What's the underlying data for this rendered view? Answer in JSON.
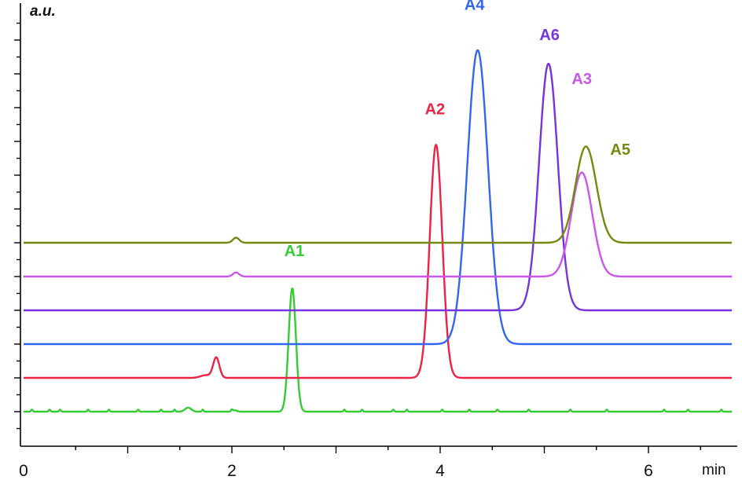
{
  "chart_data": {
    "type": "line",
    "xlabel": "min",
    "ylabel": "a.u.",
    "xlim": [
      0,
      6.8
    ],
    "x_ticks": [
      0,
      2,
      4,
      6
    ],
    "grid": false,
    "legend": "none",
    "series": [
      {
        "name": "A1",
        "color": "#33cc33",
        "baseline": 0.0,
        "label_pos": [
          2.6,
          4.6
        ],
        "peaks": [
          {
            "x": 2.58,
            "h": 3.65,
            "w": 0.035
          },
          {
            "x": 1.58,
            "h": 0.12,
            "w": 0.03
          },
          {
            "x": 2.03,
            "h": 0.04,
            "w": 0.02
          }
        ],
        "noise_x": [
          0.08,
          0.25,
          0.35,
          0.62,
          0.82,
          1.1,
          1.32,
          1.45,
          1.72,
          2.0,
          3.08,
          3.25,
          3.55,
          3.68,
          4.02,
          4.28,
          4.55,
          4.85,
          5.25,
          5.6,
          6.15,
          6.38,
          6.7
        ]
      },
      {
        "name": "A2",
        "color": "#ee2244",
        "baseline": 1.0,
        "label_pos": [
          3.95,
          8.8
        ],
        "peaks": [
          {
            "x": 3.96,
            "h": 6.9,
            "w": 0.06
          },
          {
            "x": 1.85,
            "h": 0.6,
            "w": 0.03
          },
          {
            "x": 1.75,
            "h": 0.08,
            "w": 0.05
          }
        ]
      },
      {
        "name": "A4",
        "color": "#3366ee",
        "baseline": 2.0,
        "label_pos": [
          4.33,
          11.9
        ],
        "peaks": [
          {
            "x": 4.36,
            "h": 8.7,
            "w": 0.1
          }
        ]
      },
      {
        "name": "A6",
        "color": "#7733dd",
        "baseline": 3.0,
        "label_pos": [
          5.05,
          11.0
        ],
        "peaks": [
          {
            "x": 5.04,
            "h": 7.3,
            "w": 0.09
          }
        ]
      },
      {
        "name": "A3",
        "color": "#cc55ee",
        "baseline": 4.0,
        "label_pos": [
          5.36,
          9.7
        ],
        "peaks": [
          {
            "x": 5.36,
            "h": 3.08,
            "w": 0.1
          },
          {
            "x": 2.04,
            "h": 0.12,
            "w": 0.03
          }
        ]
      },
      {
        "name": "A5",
        "color": "#778811",
        "baseline": 5.0,
        "label_pos": [
          5.73,
          7.6
        ],
        "peaks": [
          {
            "x": 5.4,
            "h": 2.85,
            "w": 0.1
          },
          {
            "x": 2.04,
            "h": 0.15,
            "w": 0.03
          }
        ]
      }
    ]
  }
}
